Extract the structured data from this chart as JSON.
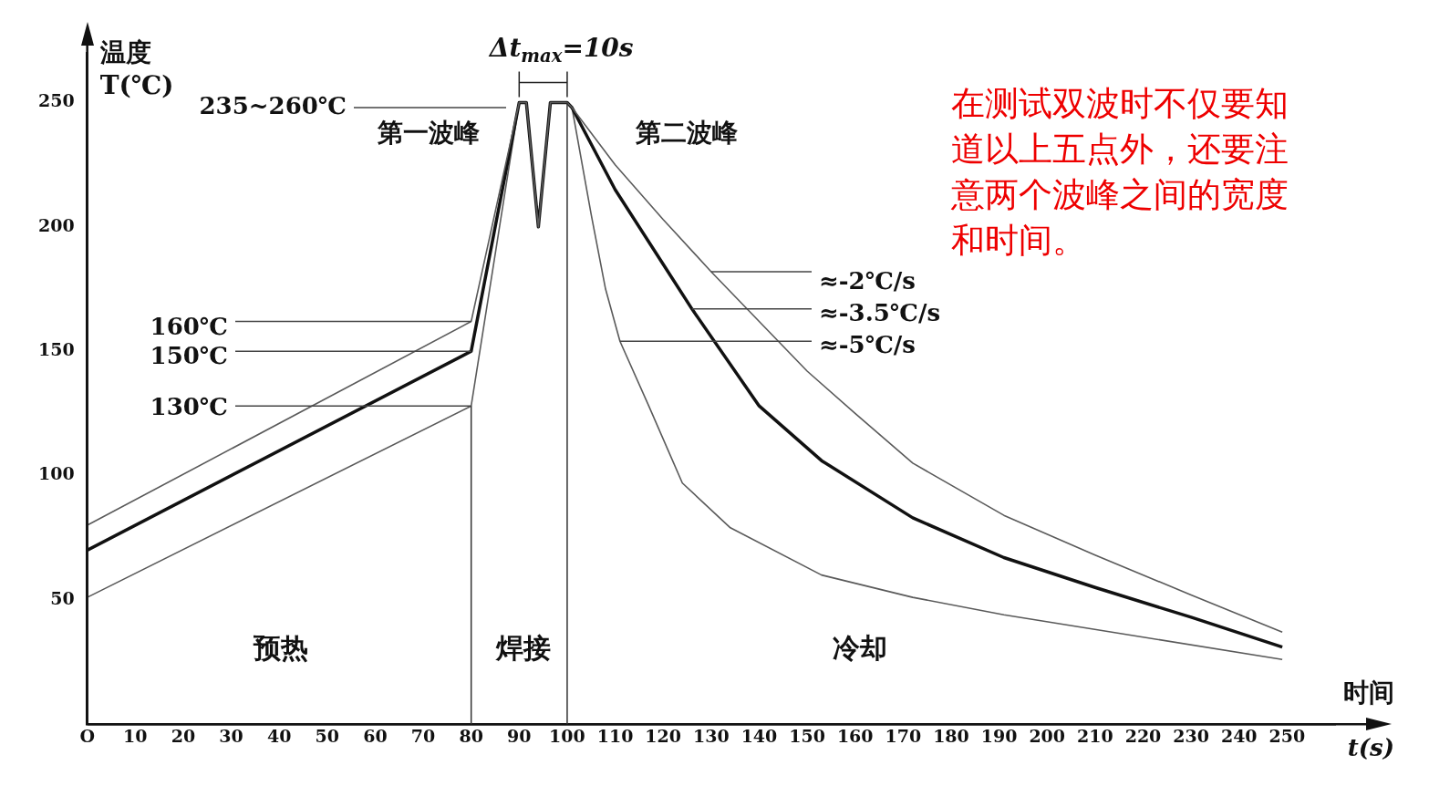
{
  "chart_data": {
    "type": "line",
    "xlabel": "时间 t(s)",
    "ylabel": "温度 T(℃)",
    "xlim": [
      0,
      260
    ],
    "ylim": [
      0,
      270
    ],
    "xticks": [
      {
        "value": 0,
        "label": "O"
      },
      10,
      20,
      30,
      40,
      50,
      60,
      70,
      80,
      90,
      100,
      110,
      120,
      130,
      140,
      150,
      160,
      170,
      180,
      190,
      200,
      210,
      220,
      230,
      240,
      250
    ],
    "yticks": [
      50,
      100,
      150,
      200,
      250
    ],
    "grid": false,
    "legend": false,
    "marker": "none",
    "line_style": "solid",
    "series": [
      {
        "color": "#5a5a5a",
        "x": [
          0,
          80,
          90,
          91.5,
          93.5,
          94,
          94.5,
          96.5,
          100,
          101,
          110,
          120,
          130,
          140,
          150,
          160,
          172,
          191,
          210,
          230,
          249
        ],
        "values": [
          80,
          162,
          250,
          250,
          210,
          200,
          210,
          250,
          250,
          248,
          225,
          203,
          182,
          162,
          142,
          125,
          105,
          84,
          68,
          52,
          37
        ]
      },
      {
        "color": "#111111",
        "x": [
          0,
          80,
          90,
          91.5,
          93.5,
          94,
          94.5,
          96.5,
          100,
          101,
          110,
          120,
          126,
          140,
          153,
          172,
          191,
          210,
          230,
          249
        ],
        "values": [
          70,
          150,
          250,
          250,
          210,
          200,
          210,
          250,
          250,
          248,
          215,
          185,
          167,
          128,
          106,
          83,
          67,
          55,
          43,
          31
        ]
      },
      {
        "color": "#5a5a5a",
        "x": [
          0,
          80,
          90,
          91.5,
          93.5,
          94,
          94.5,
          96.5,
          100,
          101,
          105,
          108,
          111,
          117,
          124,
          134,
          153,
          172,
          191,
          220,
          249
        ],
        "values": [
          51,
          128,
          250,
          250,
          210,
          200,
          210,
          250,
          250,
          248,
          205,
          175,
          154,
          128,
          97,
          79,
          60,
          51,
          44,
          35,
          26
        ]
      }
    ],
    "ref_lines": [
      {
        "axis": "x",
        "value": 80,
        "color": "#333333"
      },
      {
        "axis": "x",
        "value": 100,
        "color": "#333333"
      }
    ],
    "annotations": [
      "235~260℃",
      "第一波峰",
      "第二波峰",
      {
        "text": "160℃",
        "x": 80,
        "y": 162
      },
      {
        "text": "150℃",
        "x": 80,
        "y": 150
      },
      {
        "text": "130℃",
        "x": 80,
        "y": 128
      },
      {
        "text": "≈-2℃/s",
        "x": 130,
        "y": 182
      },
      {
        "text": "≈-3.5℃/s",
        "x": 126,
        "y": 167
      },
      {
        "text": "≈-5℃/s",
        "x": 111,
        "y": 154
      },
      "预热",
      "焊接",
      "冷却",
      {
        "text": "Δt$_{max}$=10s",
        "x": 100,
        "y": 250
      },
      "在测试双波时不仅要知道以上五点外，还要注意两个波峰之间的宽度和时间。"
    ]
  }
}
